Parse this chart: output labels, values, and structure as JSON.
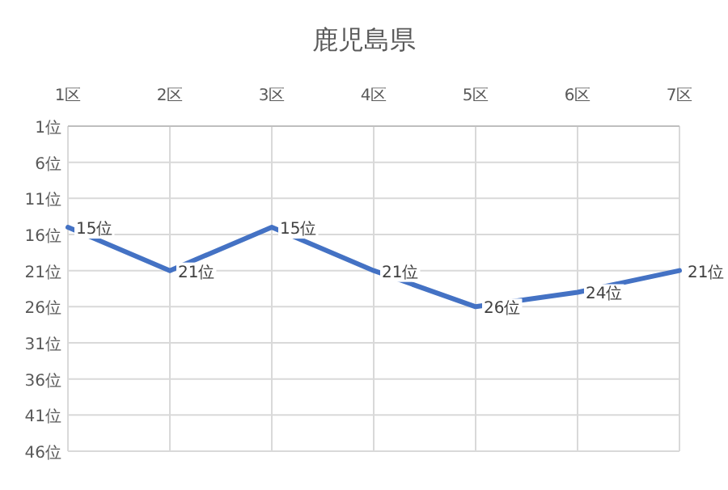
{
  "chart_data": {
    "type": "line",
    "title": "鹿児島県",
    "categories": [
      "1区",
      "2区",
      "3区",
      "4区",
      "5区",
      "6区",
      "7区"
    ],
    "series": [
      {
        "color": "#4472c4",
        "values": [
          15,
          21,
          15,
          21,
          26,
          24,
          21
        ],
        "value_labels": [
          "15位",
          "21位",
          "15位",
          "21位",
          "26位",
          "24位",
          "21位"
        ]
      }
    ],
    "ylim": [
      46,
      1
    ],
    "yticks": [
      {
        "value": 1,
        "label": "1位"
      },
      {
        "value": 6,
        "label": "6位"
      },
      {
        "value": 11,
        "label": "11位"
      },
      {
        "value": 16,
        "label": "16位"
      },
      {
        "value": 21,
        "label": "21位"
      },
      {
        "value": 26,
        "label": "26位"
      },
      {
        "value": 31,
        "label": "31位"
      },
      {
        "value": 36,
        "label": "36位"
      },
      {
        "value": 41,
        "label": "41位"
      },
      {
        "value": 46,
        "label": "46位"
      }
    ],
    "grid": true
  }
}
